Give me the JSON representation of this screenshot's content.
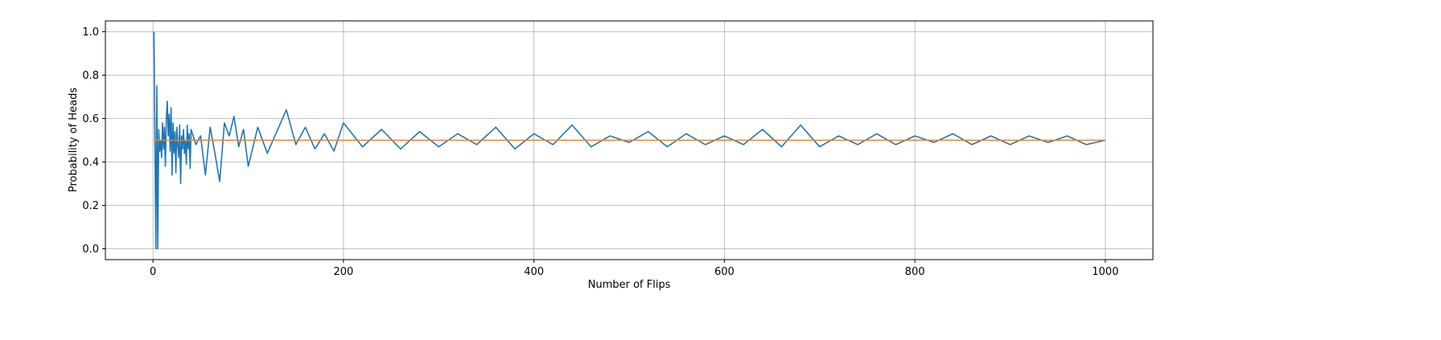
{
  "chart_data": {
    "type": "line",
    "title": "",
    "xlabel": "Number of Flips",
    "ylabel": "Probability of Heads",
    "xlim": [
      -50,
      1050
    ],
    "ylim": [
      -0.05,
      1.05
    ],
    "x_ticks": [
      0,
      200,
      400,
      600,
      800,
      1000
    ],
    "y_ticks": [
      0.0,
      0.2,
      0.4,
      0.6,
      0.8,
      1.0
    ],
    "x_tick_labels": [
      "0",
      "200",
      "400",
      "600",
      "800",
      "1000"
    ],
    "y_tick_labels": [
      "0.0",
      "0.2",
      "0.4",
      "0.6",
      "0.8",
      "1.0"
    ],
    "grid": true,
    "legend": "none",
    "series": [
      {
        "color": "#1f77b4",
        "x": [
          1,
          2,
          3,
          4,
          5,
          6,
          7,
          8,
          9,
          10,
          11,
          12,
          13,
          14,
          15,
          16,
          17,
          18,
          19,
          20,
          21,
          22,
          23,
          24,
          25,
          26,
          27,
          28,
          29,
          30,
          31,
          32,
          33,
          34,
          35,
          36,
          37,
          38,
          39,
          40,
          45,
          50,
          55,
          60,
          65,
          70,
          75,
          80,
          85,
          90,
          95,
          100,
          110,
          120,
          130,
          140,
          150,
          160,
          170,
          180,
          190,
          200,
          220,
          240,
          260,
          280,
          300,
          320,
          340,
          360,
          380,
          400,
          420,
          440,
          460,
          480,
          500,
          520,
          540,
          560,
          580,
          600,
          620,
          640,
          660,
          680,
          700,
          720,
          740,
          760,
          780,
          800,
          820,
          840,
          860,
          880,
          900,
          920,
          940,
          960,
          980,
          1000
        ],
        "values": [
          1.0,
          0.5,
          0.0,
          0.75,
          0.0,
          0.55,
          0.45,
          0.5,
          0.42,
          0.58,
          0.46,
          0.56,
          0.38,
          0.6,
          0.68,
          0.52,
          0.62,
          0.45,
          0.65,
          0.34,
          0.58,
          0.44,
          0.54,
          0.35,
          0.56,
          0.48,
          0.42,
          0.57,
          0.3,
          0.52,
          0.46,
          0.55,
          0.44,
          0.5,
          0.39,
          0.57,
          0.46,
          0.53,
          0.37,
          0.55,
          0.48,
          0.52,
          0.34,
          0.56,
          0.44,
          0.31,
          0.58,
          0.52,
          0.61,
          0.47,
          0.55,
          0.38,
          0.56,
          0.44,
          0.54,
          0.64,
          0.48,
          0.56,
          0.46,
          0.53,
          0.45,
          0.58,
          0.47,
          0.55,
          0.46,
          0.54,
          0.47,
          0.53,
          0.48,
          0.56,
          0.46,
          0.53,
          0.48,
          0.57,
          0.47,
          0.52,
          0.49,
          0.54,
          0.47,
          0.53,
          0.48,
          0.52,
          0.48,
          0.55,
          0.47,
          0.57,
          0.47,
          0.52,
          0.48,
          0.53,
          0.48,
          0.52,
          0.49,
          0.53,
          0.48,
          0.52,
          0.48,
          0.52,
          0.49,
          0.52,
          0.48,
          0.5
        ]
      },
      {
        "color": "#ff7f0e",
        "x": [
          1,
          1000
        ],
        "values": [
          0.5,
          0.5
        ]
      }
    ]
  }
}
